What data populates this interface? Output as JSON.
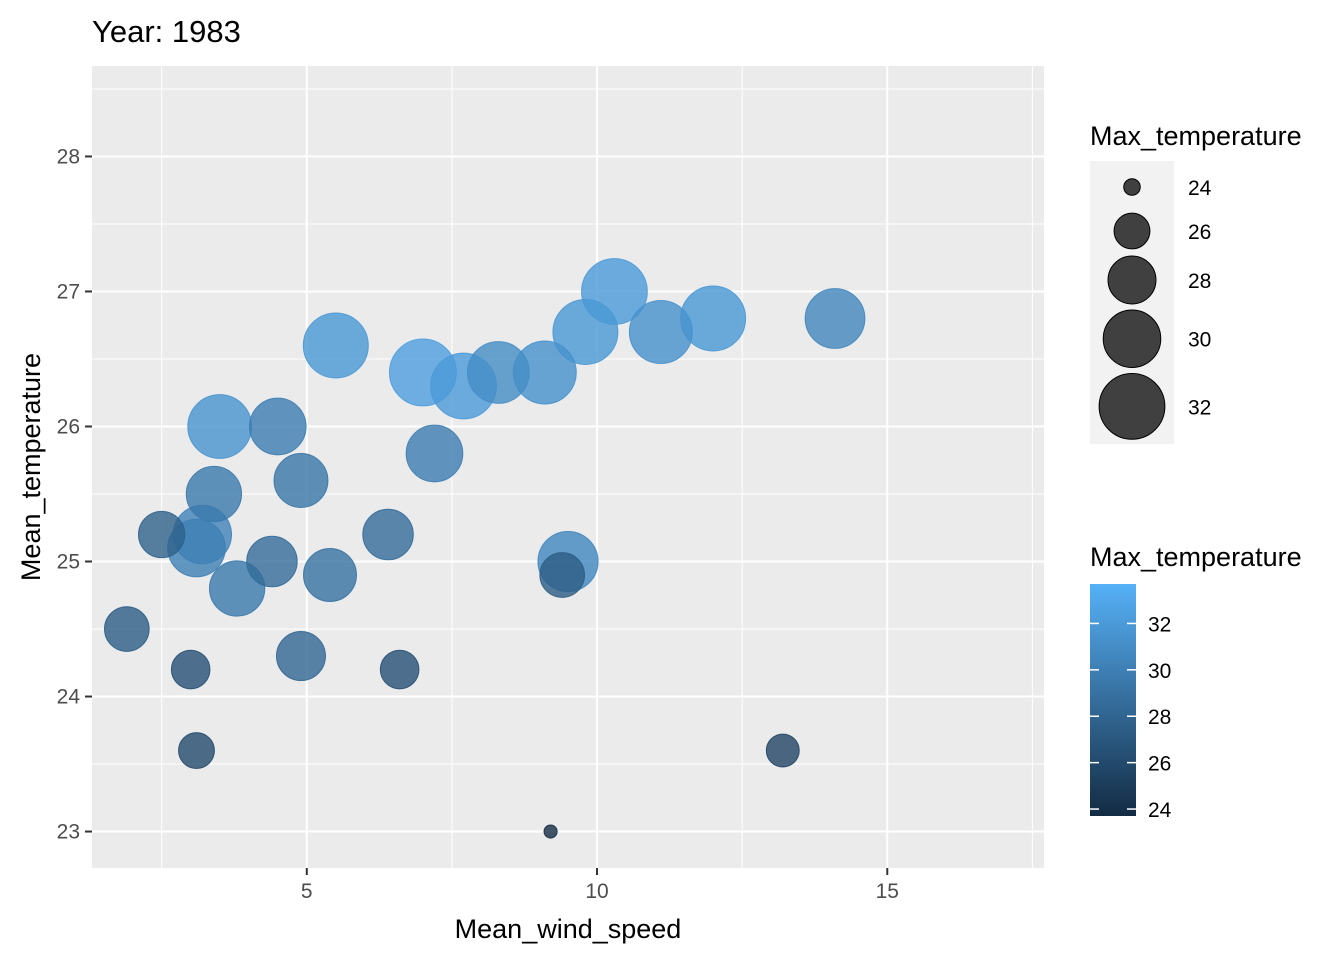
{
  "chart_data": {
    "type": "scatter",
    "title": "Year: 1983",
    "xlabel": "Mean_wind_speed",
    "ylabel": "Mean_temperature",
    "xlim": [
      1.3,
      17.7
    ],
    "ylim": [
      22.73,
      28.67
    ],
    "x_ticks": [
      5,
      10,
      15
    ],
    "x_tick_labels": [
      "5",
      "10",
      "15"
    ],
    "y_ticks": [
      23,
      24,
      25,
      26,
      27,
      28
    ],
    "y_tick_labels": [
      "23",
      "24",
      "25",
      "26",
      "27",
      "28"
    ],
    "grid": true,
    "size_variable": "Max_temperature",
    "color_variable": "Max_temperature",
    "points": [
      {
        "x": 1.9,
        "y": 24.5,
        "max_temperature": 27.4
      },
      {
        "x": 2.5,
        "y": 25.2,
        "max_temperature": 27.7
      },
      {
        "x": 3.0,
        "y": 24.2,
        "max_temperature": 26.4
      },
      {
        "x": 3.1,
        "y": 23.6,
        "max_temperature": 26.0
      },
      {
        "x": 3.1,
        "y": 25.1,
        "max_temperature": 30.0
      },
      {
        "x": 3.2,
        "y": 25.2,
        "max_temperature": 30.2
      },
      {
        "x": 3.4,
        "y": 25.5,
        "max_temperature": 29.5
      },
      {
        "x": 3.5,
        "y": 26.0,
        "max_temperature": 31.5
      },
      {
        "x": 3.8,
        "y": 24.8,
        "max_temperature": 29.5
      },
      {
        "x": 4.4,
        "y": 25.0,
        "max_temperature": 28.5
      },
      {
        "x": 4.5,
        "y": 26.0,
        "max_temperature": 29.8
      },
      {
        "x": 4.9,
        "y": 25.6,
        "max_temperature": 29.2
      },
      {
        "x": 4.9,
        "y": 24.3,
        "max_temperature": 28.2
      },
      {
        "x": 5.4,
        "y": 24.9,
        "max_temperature": 29.0
      },
      {
        "x": 5.5,
        "y": 26.6,
        "max_temperature": 31.8
      },
      {
        "x": 6.4,
        "y": 25.2,
        "max_temperature": 28.5
      },
      {
        "x": 6.6,
        "y": 24.2,
        "max_temperature": 26.4
      },
      {
        "x": 7.0,
        "y": 26.4,
        "max_temperature": 32.3
      },
      {
        "x": 7.2,
        "y": 25.8,
        "max_temperature": 29.8
      },
      {
        "x": 7.7,
        "y": 26.3,
        "max_temperature": 32.0
      },
      {
        "x": 8.3,
        "y": 26.4,
        "max_temperature": 31.0
      },
      {
        "x": 9.1,
        "y": 26.4,
        "max_temperature": 31.3
      },
      {
        "x": 9.2,
        "y": 23.0,
        "max_temperature": 23.8
      },
      {
        "x": 9.4,
        "y": 24.9,
        "max_temperature": 27.4
      },
      {
        "x": 9.5,
        "y": 25.0,
        "max_temperature": 30.6
      },
      {
        "x": 9.8,
        "y": 26.7,
        "max_temperature": 31.8
      },
      {
        "x": 10.3,
        "y": 27.0,
        "max_temperature": 32.0
      },
      {
        "x": 11.1,
        "y": 26.7,
        "max_temperature": 31.3
      },
      {
        "x": 12.0,
        "y": 26.8,
        "max_temperature": 31.8
      },
      {
        "x": 13.2,
        "y": 23.6,
        "max_temperature": 25.6
      },
      {
        "x": 14.1,
        "y": 26.8,
        "max_temperature": 30.5
      }
    ],
    "size_legend": {
      "title": "Max_temperature",
      "values": [
        24,
        26,
        28,
        30,
        32
      ],
      "labels": [
        "24",
        "26",
        "28",
        "30",
        "32"
      ],
      "color": "#404040"
    },
    "color_legend": {
      "title": "Max_temperature",
      "range": [
        23.7,
        33.7
      ],
      "values": [
        24,
        26,
        28,
        30,
        32
      ],
      "labels": [
        "24",
        "26",
        "28",
        "30",
        "32"
      ],
      "color_low": "#132B43",
      "color_high": "#56B1F7"
    },
    "panel_background": "#EBEBEB",
    "gridline_color": "#FFFFFF",
    "point_alpha": 0.8
  }
}
